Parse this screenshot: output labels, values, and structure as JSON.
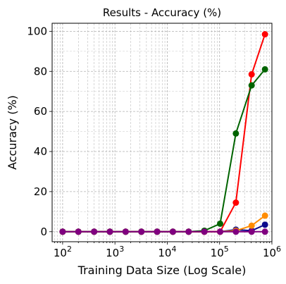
{
  "chart_data": {
    "type": "line",
    "title": "Results - Accuracy (%)",
    "xlabel": "Training Data Size (Log Scale)",
    "ylabel": "Accuracy (%)",
    "xscale": "log",
    "xlim": [
      63,
      1000000
    ],
    "ylim": [
      -5,
      104
    ],
    "grid": "on (major and minor, dashed)",
    "x_ticks": [
      {
        "value": 100,
        "base": "10",
        "exp": "2"
      },
      {
        "value": 1000,
        "base": "10",
        "exp": "3"
      },
      {
        "value": 10000,
        "base": "10",
        "exp": "4"
      },
      {
        "value": 100000,
        "base": "10",
        "exp": "5"
      },
      {
        "value": 1000000,
        "base": "10",
        "exp": "6"
      }
    ],
    "y_ticks": [
      "0",
      "20",
      "40",
      "60",
      "80",
      "100"
    ],
    "x": [
      100,
      200,
      400,
      800,
      1600,
      3200,
      6400,
      12800,
      25600,
      51200,
      102400,
      204800,
      409600,
      737280
    ],
    "series": [
      {
        "color": "#0a0a8c",
        "values": [
          0,
          0,
          0,
          0,
          0,
          0,
          0,
          0,
          0,
          0,
          0,
          1,
          0.5,
          3.5
        ]
      },
      {
        "color": "#ff8c00",
        "values": [
          0,
          0,
          0,
          0,
          0,
          0,
          0,
          0,
          0,
          0,
          0,
          0.5,
          3,
          8
        ]
      },
      {
        "color": "#ff0000",
        "values": [
          0,
          0,
          0,
          0,
          0,
          0,
          0,
          0,
          0,
          0,
          0,
          14.5,
          78.5,
          98.5
        ]
      },
      {
        "color": "#006400",
        "values": [
          0,
          0,
          0,
          0,
          0,
          0,
          0,
          0,
          0,
          0.5,
          4,
          49,
          73,
          81
        ]
      },
      {
        "color": "#800080",
        "values": [
          0,
          0,
          0,
          0,
          0,
          0,
          0,
          0,
          0,
          0,
          0,
          0,
          0,
          0
        ]
      }
    ]
  }
}
